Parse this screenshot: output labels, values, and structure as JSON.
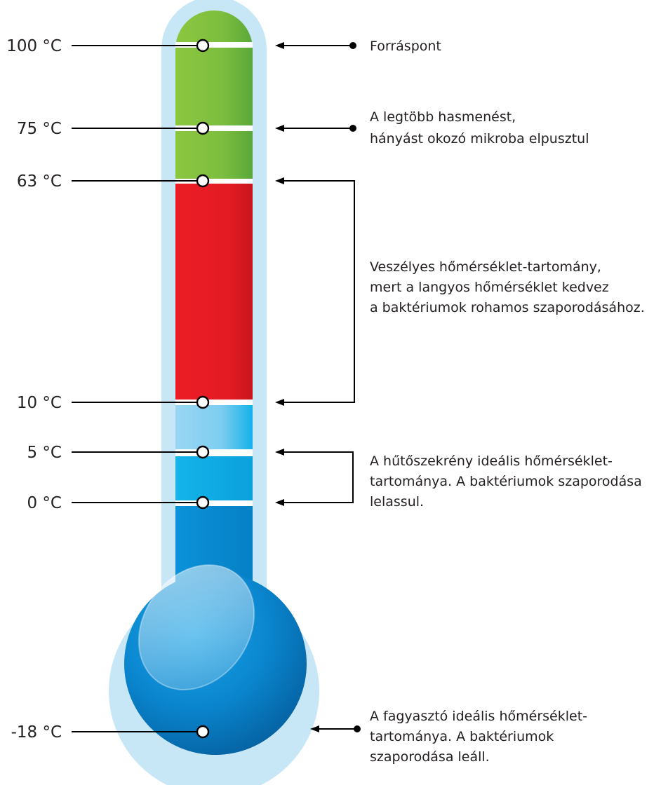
{
  "temperatures": [
    {
      "label": "100 °C",
      "value": 100
    },
    {
      "label": "75 °C",
      "value": 75
    },
    {
      "label": "63 °C",
      "value": 63
    },
    {
      "label": "10 °C",
      "value": 10
    },
    {
      "label": "5 °C",
      "value": 5
    },
    {
      "label": "0 °C",
      "value": 0
    },
    {
      "label": "-18 °C",
      "value": -18
    }
  ],
  "annotations": {
    "boiling": {
      "lines": [
        "Forráspont"
      ]
    },
    "microbes": {
      "lines": [
        "A legtöbb hasmenést,",
        "hányást okozó mikroba elpusztul"
      ]
    },
    "danger": {
      "lines": [
        "Veszélyes hőmérséklet-tartomány,",
        "mert a langyos hőmérséklet kedvez",
        "a baktériumok rohamos szaporodásához."
      ]
    },
    "fridge": {
      "lines": [
        "A hűtőszekrény ideális hőmérséklet-",
        "tartománya. A baktériumok szaporodása",
        "lelassul."
      ]
    },
    "freezer": {
      "lines": [
        "A fagyasztó ideális hőmérséklet-",
        "tartománya. A baktériumok",
        "szaporodása leáll."
      ]
    }
  },
  "colors": {
    "outline": "#c7e7f7",
    "green": "#7dbe3f",
    "red": "#e31b23",
    "light_blue": "#8fd2f2",
    "cyan": "#12b0e8",
    "blue": "#0a8fd6",
    "bulb_dark": "#0767a8"
  }
}
